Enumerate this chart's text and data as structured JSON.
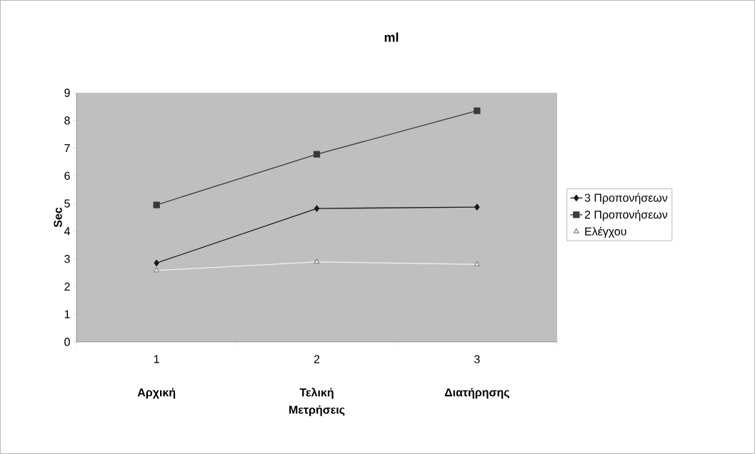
{
  "chart_data": {
    "type": "line",
    "title": "ml",
    "xlabel": "Μετρήσεις",
    "ylabel": "Sec",
    "categories": [
      "1",
      "2",
      "3"
    ],
    "annotations": [
      "Αρχική",
      "Τελική",
      "Διατήρησης"
    ],
    "series": [
      {
        "name": "3   Προπονήσεων",
        "color": "#1a1a1a",
        "marker": "diamond",
        "values": [
          2.85,
          4.82,
          4.87
        ]
      },
      {
        "name": "2   Προπονήσεων",
        "color": "#3a3a3a",
        "marker": "square",
        "values": [
          4.95,
          6.78,
          8.35
        ]
      },
      {
        "name": "Ελέγχου",
        "color": "#f2f2f2",
        "marker": "triangle",
        "values": [
          2.58,
          2.89,
          2.8
        ]
      }
    ],
    "ylim": [
      0,
      9
    ],
    "yticks": [
      0,
      1,
      2,
      3,
      4,
      5,
      6,
      7,
      8,
      9
    ],
    "grid": false,
    "legend": "right",
    "line_style": "solid"
  }
}
